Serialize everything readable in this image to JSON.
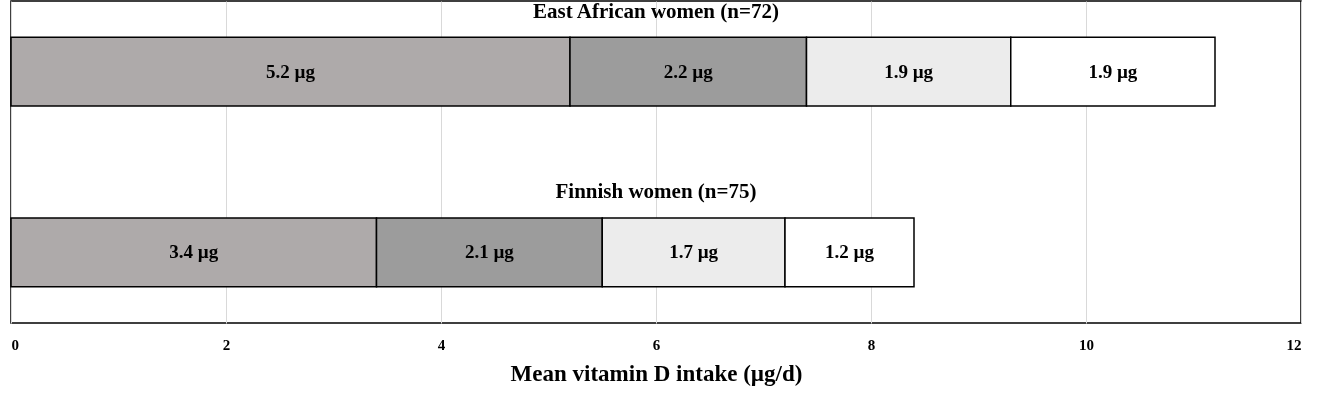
{
  "chart_data": {
    "type": "bar",
    "orientation": "horizontal",
    "stacked": true,
    "xlabel": "Mean vitamin D intake (µg/d)",
    "categories": [
      "East African women (n=72)",
      "Finnish women (n=75)"
    ],
    "series": [
      {
        "color": "#aeaaaa",
        "values": [
          5.2,
          3.4
        ],
        "value_labels": [
          "5.2 µg",
          "3.4 µg"
        ]
      },
      {
        "color": "#9c9c9c",
        "values": [
          2.2,
          2.1
        ],
        "value_labels": [
          "2.2 µg",
          "2.1 µg"
        ]
      },
      {
        "color": "#ececec",
        "values": [
          1.9,
          1.7
        ],
        "value_labels": [
          "1.9 µg",
          "1.7 µg"
        ]
      },
      {
        "color": "#ffffff",
        "values": [
          1.9,
          1.2
        ],
        "value_labels": [
          "1.9 µg",
          "1.2 µg"
        ]
      }
    ],
    "xlim": [
      0,
      12
    ],
    "xticks": [
      0,
      2,
      4,
      6,
      8,
      10,
      12
    ],
    "grid": "x"
  }
}
